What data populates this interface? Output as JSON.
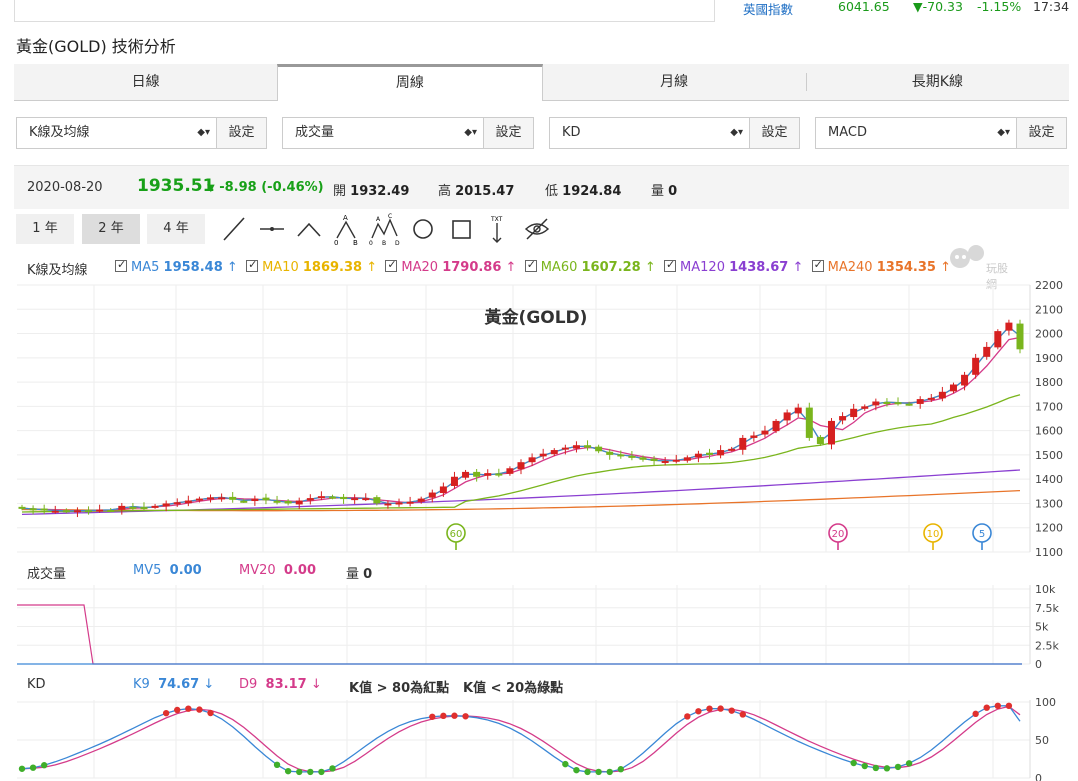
{
  "ticker": {
    "name": "英國指數",
    "price": "6041.65",
    "change": "▼-70.33",
    "pct": "-1.15%",
    "time": "17:34"
  },
  "page_title": "黃金(GOLD) 技術分析",
  "tabs": [
    {
      "label": "日線"
    },
    {
      "label": "周線"
    },
    {
      "label": "月線"
    },
    {
      "label": "長期K線"
    }
  ],
  "selects": [
    {
      "value": "K線及均線",
      "button": "設定"
    },
    {
      "value": "成交量",
      "button": "設定"
    },
    {
      "value": "KD",
      "button": "設定"
    },
    {
      "value": "MACD",
      "button": "設定"
    }
  ],
  "quote": {
    "date": "2020-08-20",
    "price": "1935.51",
    "change": "-8.98 (-0.46%)",
    "open_label": "開",
    "open": "1932.49",
    "high_label": "高",
    "high": "2015.47",
    "low_label": "低",
    "low": "1924.84",
    "vol_label": "量",
    "vol": "0"
  },
  "ranges": [
    {
      "label": "1 年"
    },
    {
      "label": "2 年"
    },
    {
      "label": "4 年"
    }
  ],
  "tools": [
    "line-tool-icon",
    "horizontal-line-icon",
    "angle-tool-icon",
    "abc-pattern-icon",
    "abcd-pattern-icon",
    "circle-tool-icon",
    "rectangle-tool-icon",
    "text-tool-icon",
    "hide-eye-icon"
  ],
  "ma_legend": {
    "label": "K線及均線",
    "items": [
      {
        "name": "MA5",
        "value": "1958.48",
        "arrow": "↑",
        "color": "#3a87d6"
      },
      {
        "name": "MA10",
        "value": "1869.38",
        "arrow": "↑",
        "color": "#e8b400"
      },
      {
        "name": "MA20",
        "value": "1790.86",
        "arrow": "↑",
        "color": "#d43b8a"
      },
      {
        "name": "MA60",
        "value": "1607.28",
        "arrow": "↑",
        "color": "#7ab51d"
      },
      {
        "name": "MA120",
        "value": "1438.67",
        "arrow": "↑",
        "color": "#8a3fd1"
      },
      {
        "name": "MA240",
        "value": "1354.35",
        "arrow": "↑",
        "color": "#e8742a"
      }
    ]
  },
  "watermark": "玩股網",
  "chart_title": "黃金(GOLD)",
  "price_axis": [
    "2200",
    "2100",
    "2000",
    "1900",
    "1800",
    "1700",
    "1600",
    "1500",
    "1400",
    "1300",
    "1200",
    "1100"
  ],
  "ma_markers": [
    "60",
    "20",
    "10",
    "5"
  ],
  "volume_legend": {
    "label": "成交量",
    "mv5_name": "MV5",
    "mv5": "0.00",
    "mv20_name": "MV20",
    "mv20": "0.00",
    "vol_name": "量",
    "vol": "0"
  },
  "volume_axis": [
    "10k",
    "7.5k",
    "5k",
    "2.5k",
    "0"
  ],
  "kd_legend": {
    "label": "KD",
    "k_name": "K9",
    "k": "74.67",
    "k_arrow": "↓",
    "d_name": "D9",
    "d": "83.17",
    "d_arrow": "↓",
    "rule_red": "K值 > 80為紅點",
    "rule_green": "K值 < 20為綠點"
  },
  "kd_axis": [
    "100",
    "50",
    "0"
  ],
  "colors": {
    "up": "#d62020",
    "down": "#7ab51d",
    "ma5": "#3a87d6",
    "ma10": "#e8b400",
    "ma20": "#d43b8a",
    "ma60": "#7ab51d",
    "ma120": "#8a3fd1",
    "ma240": "#e8742a"
  },
  "chart_data": {
    "type": "candlestick",
    "title": "黃金(GOLD)",
    "ylim": [
      1100,
      2200
    ],
    "candles_close": [
      1280,
      1275,
      1272,
      1270,
      1268,
      1272,
      1270,
      1275,
      1272,
      1290,
      1285,
      1282,
      1290,
      1300,
      1305,
      1312,
      1320,
      1325,
      1325,
      1315,
      1310,
      1320,
      1313,
      1308,
      1300,
      1312,
      1322,
      1330,
      1325,
      1318,
      1322,
      1322,
      1300,
      1300,
      1304,
      1307,
      1320,
      1345,
      1370,
      1410,
      1430,
      1410,
      1425,
      1420,
      1445,
      1470,
      1490,
      1505,
      1520,
      1530,
      1540,
      1530,
      1515,
      1500,
      1500,
      1490,
      1480,
      1475,
      1475,
      1480,
      1490,
      1505,
      1500,
      1520,
      1525,
      1570,
      1580,
      1600,
      1640,
      1675,
      1695,
      1570,
      1545,
      1640,
      1660,
      1690,
      1700,
      1720,
      1715,
      1715,
      1710,
      1730,
      1735,
      1760,
      1790,
      1830,
      1900,
      1945,
      2010,
      2045,
      1935
    ],
    "ma_latest": {
      "MA5": 1958.48,
      "MA10": 1869.38,
      "MA20": 1790.86,
      "MA60": 1607.28,
      "MA120": 1438.67,
      "MA240": 1354.35
    },
    "volume": {
      "mv5": 0,
      "mv20": 0,
      "ylim": [
        0,
        10000
      ]
    },
    "kd": {
      "k": 74.67,
      "d": 83.17,
      "ylim": [
        0,
        100
      ]
    }
  }
}
